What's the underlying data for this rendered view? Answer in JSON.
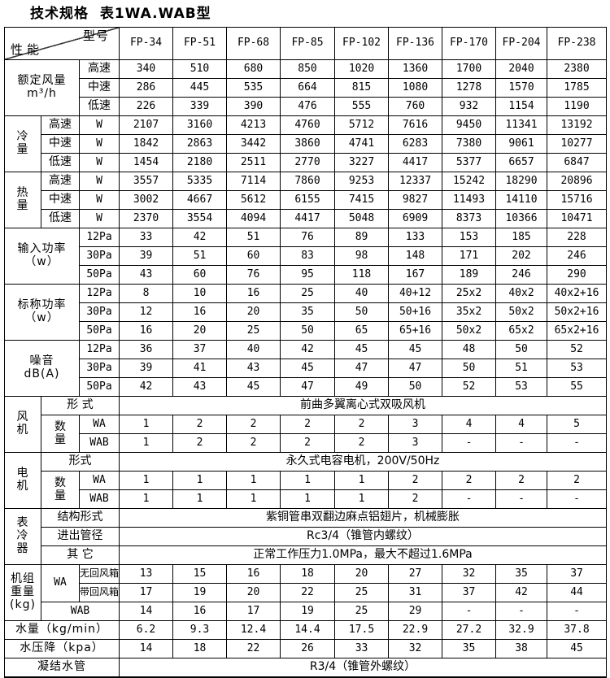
{
  "title": "技术规格  表1WA.WAB型",
  "corner": {
    "model_label": "型号",
    "perf_label": "性能"
  },
  "models": [
    "FP-34",
    "FP-51",
    "FP-68",
    "FP-85",
    "FP-102",
    "FP-136",
    "FP-170",
    "FP-204",
    "FP-238"
  ],
  "sections": {
    "airflow": {
      "label": "额定风量",
      "unit": "m³/h",
      "rows": [
        {
          "label": "高速",
          "values": [
            "340",
            "510",
            "680",
            "850",
            "1020",
            "1360",
            "1700",
            "2040",
            "2380"
          ]
        },
        {
          "label": "中速",
          "values": [
            "286",
            "445",
            "535",
            "664",
            "815",
            "1080",
            "1278",
            "1570",
            "1785"
          ]
        },
        {
          "label": "低速",
          "values": [
            "226",
            "339",
            "390",
            "476",
            "555",
            "760",
            "932",
            "1154",
            "1190"
          ]
        }
      ]
    },
    "cooling": {
      "label": "冷\n量",
      "unit": "W",
      "rows": [
        {
          "label": "高速",
          "values": [
            "2107",
            "3160",
            "4213",
            "4760",
            "5712",
            "7616",
            "9450",
            "11341",
            "13192"
          ]
        },
        {
          "label": "中速",
          "values": [
            "1842",
            "2863",
            "3442",
            "3860",
            "4741",
            "6283",
            "7380",
            "9061",
            "10277"
          ]
        },
        {
          "label": "低速",
          "values": [
            "1454",
            "2180",
            "2511",
            "2770",
            "3227",
            "4417",
            "5377",
            "6657",
            "6847"
          ]
        }
      ]
    },
    "heating": {
      "label": "热\n量",
      "unit": "W",
      "rows": [
        {
          "label": "高速",
          "values": [
            "3557",
            "5335",
            "7114",
            "7860",
            "9253",
            "12337",
            "15242",
            "18290",
            "20896"
          ]
        },
        {
          "label": "中速",
          "values": [
            "3002",
            "4667",
            "5612",
            "6155",
            "7415",
            "9827",
            "11493",
            "14110",
            "15716"
          ]
        },
        {
          "label": "低速",
          "values": [
            "2370",
            "3554",
            "4094",
            "4417",
            "5048",
            "6909",
            "8373",
            "10366",
            "10471"
          ]
        }
      ]
    },
    "input_power": {
      "label": "输入功率（w）",
      "rows": [
        {
          "label": "12Pa",
          "values": [
            "33",
            "42",
            "51",
            "76",
            "89",
            "133",
            "153",
            "185",
            "228"
          ]
        },
        {
          "label": "30Pa",
          "values": [
            "39",
            "51",
            "60",
            "83",
            "98",
            "148",
            "171",
            "202",
            "246"
          ]
        },
        {
          "label": "50Pa",
          "values": [
            "43",
            "60",
            "76",
            "95",
            "118",
            "167",
            "189",
            "246",
            "290"
          ]
        }
      ]
    },
    "rated_power": {
      "label": "标称功率（w）",
      "rows": [
        {
          "label": "12Pa",
          "values": [
            "8",
            "10",
            "16",
            "25",
            "40",
            "40+12",
            "25x2",
            "40x2",
            "40x2+16"
          ]
        },
        {
          "label": "30Pa",
          "values": [
            "12",
            "16",
            "20",
            "35",
            "50",
            "50+16",
            "35x2",
            "50x2",
            "50x2+16"
          ]
        },
        {
          "label": "50Pa",
          "values": [
            "16",
            "20",
            "25",
            "50",
            "65",
            "65+16",
            "50x2",
            "65x2",
            "65x2+16"
          ]
        }
      ]
    },
    "noise": {
      "label": "噪音\ndB(A)",
      "rows": [
        {
          "label": "12Pa",
          "values": [
            "36",
            "37",
            "40",
            "42",
            "45",
            "45",
            "48",
            "50",
            "52"
          ]
        },
        {
          "label": "30Pa",
          "values": [
            "39",
            "41",
            "43",
            "45",
            "47",
            "47",
            "50",
            "51",
            "53"
          ]
        },
        {
          "label": "50Pa",
          "values": [
            "42",
            "43",
            "45",
            "47",
            "49",
            "50",
            "52",
            "53",
            "55"
          ]
        }
      ]
    },
    "fan": {
      "label": "风\n机",
      "type_label": "形 式",
      "type_value": "前曲多翼离心式双吸风机",
      "qty_label": "数\n量",
      "rows": [
        {
          "label": "WA",
          "values": [
            "1",
            "2",
            "2",
            "2",
            "2",
            "3",
            "4",
            "4",
            "5"
          ]
        },
        {
          "label": "WAB",
          "values": [
            "1",
            "2",
            "2",
            "2",
            "2",
            "3",
            "-",
            "-",
            "-"
          ]
        }
      ]
    },
    "motor": {
      "label": "电\n机",
      "type_label": "形式",
      "type_value": "永久式电容电机，200V/50Hz",
      "qty_label": "数\n量",
      "rows": [
        {
          "label": "WA",
          "values": [
            "1",
            "1",
            "1",
            "1",
            "1",
            "2",
            "2",
            "2",
            "2"
          ]
        },
        {
          "label": "WAB",
          "values": [
            "1",
            "1",
            "1",
            "1",
            "1",
            "2",
            "-",
            "-",
            "-"
          ]
        }
      ]
    },
    "cooler": {
      "label": "表\n冷\n器",
      "rows": [
        {
          "label": "结构形式",
          "value": "紫铜管串双翻边麻点铝翅片，机械膨胀"
        },
        {
          "label": "进出管径",
          "value": "Rc3/4（锥管内螺纹）"
        },
        {
          "label": "其 它",
          "value": "正常工作压力1.0MPa，最大不超过1.6MPa"
        }
      ]
    },
    "weight": {
      "label": "机组\n重量\n(kg)",
      "wa_label": "WA",
      "rows": [
        {
          "label": "无回风箱",
          "values": [
            "13",
            "15",
            "16",
            "18",
            "20",
            "27",
            "32",
            "35",
            "37"
          ]
        },
        {
          "label": "带回风箱",
          "values": [
            "17",
            "19",
            "20",
            "22",
            "25",
            "31",
            "37",
            "42",
            "44"
          ]
        },
        {
          "label": "WAB",
          "values": [
            "14",
            "16",
            "17",
            "19",
            "25",
            "29",
            "-",
            "-",
            "-"
          ]
        }
      ]
    },
    "water_flow": {
      "label": "水量（kg/min）",
      "values": [
        "6.2",
        "9.3",
        "12.4",
        "14.4",
        "17.5",
        "22.9",
        "27.2",
        "32.9",
        "37.8"
      ]
    },
    "water_drop": {
      "label": "水压降（kpa）",
      "values": [
        "14",
        "18",
        "22",
        "26",
        "33",
        "32",
        "35",
        "38",
        "45"
      ]
    },
    "drain": {
      "label": "凝结水管",
      "value": "R3/4（锥管外螺纹）"
    }
  }
}
